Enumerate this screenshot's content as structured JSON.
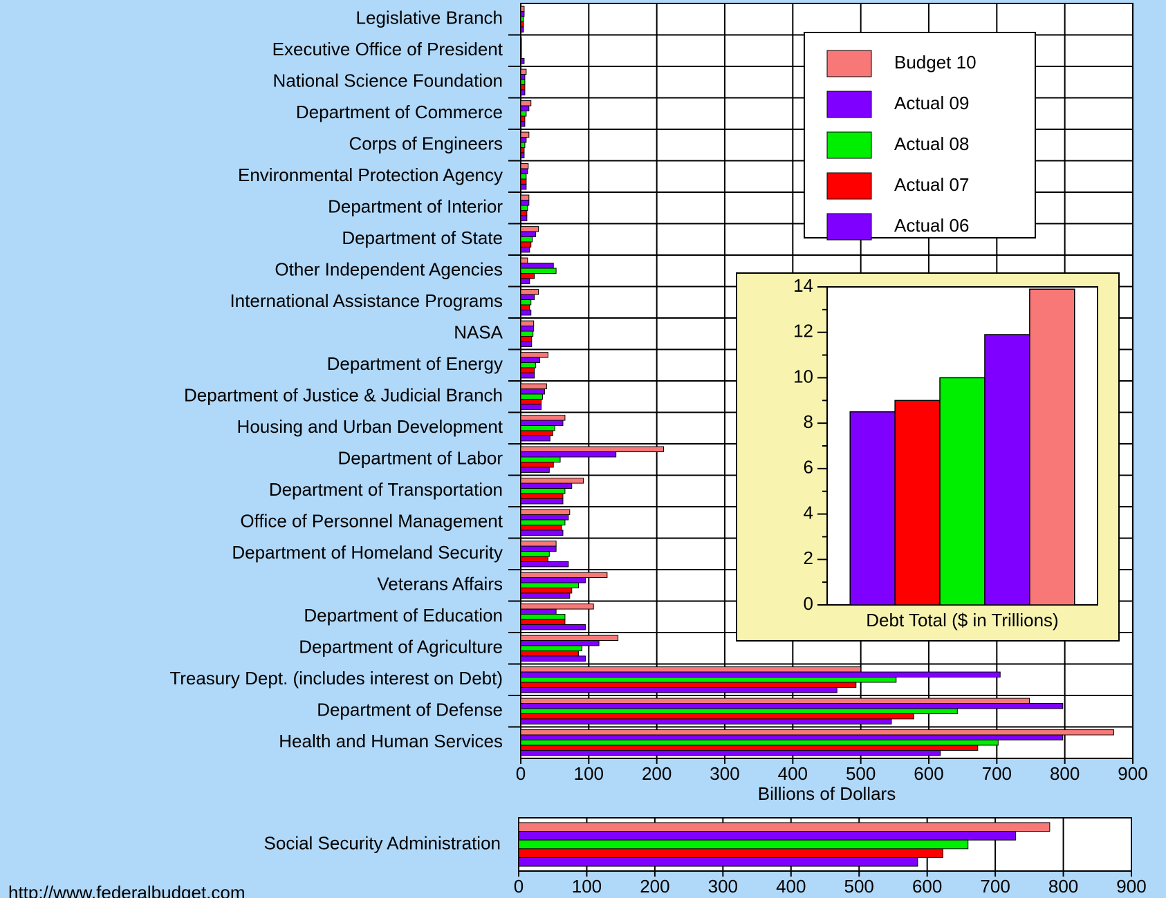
{
  "chart_data": [
    {
      "type": "barh",
      "categories": [
        "Legislative Branch",
        "Executive Office of President",
        "National Science Foundation",
        "Department of Commerce",
        "Corps of Engineers",
        "Environmental Protection Agency",
        "Department of Interior",
        "Department of State",
        "Other Independent Agencies",
        "International Assistance Programs",
        "NASA",
        "Department of Energy",
        "Department of Justice & Judicial Branch",
        "Housing and Urban Development",
        "Department of Labor",
        "Department of Transportation",
        "Office of Personnel Management",
        "Department of Homeland Security",
        "Veterans Affairs",
        "Department of Education",
        "Department of Agriculture",
        "Treasury Dept. (includes interest on Debt)",
        "Department of Defense",
        "Health and Human Services"
      ],
      "series": [
        {
          "name": "Budget 10",
          "color": "#f87878",
          "values": [
            5,
            1,
            8,
            15,
            12,
            11,
            12,
            26,
            10,
            26,
            19,
            40,
            38,
            65,
            210,
            92,
            72,
            52,
            127,
            107,
            143,
            500,
            748,
            872
          ]
        },
        {
          "name": "Actual 09",
          "color": "#8000ff",
          "values": [
            5,
            1,
            6,
            12,
            8,
            10,
            12,
            22,
            48,
            20,
            19,
            28,
            35,
            62,
            140,
            75,
            70,
            52,
            95,
            52,
            115,
            705,
            797,
            797
          ]
        },
        {
          "name": "Actual 08",
          "color": "#00ee00",
          "values": [
            4,
            1,
            6,
            8,
            6,
            8,
            10,
            17,
            52,
            15,
            18,
            22,
            32,
            50,
            58,
            65,
            65,
            42,
            85,
            65,
            90,
            552,
            642,
            702
          ]
        },
        {
          "name": "Actual 07",
          "color": "#ff0000",
          "values": [
            4,
            1,
            6,
            6,
            5,
            8,
            9,
            15,
            20,
            13,
            16,
            20,
            30,
            47,
            48,
            62,
            60,
            40,
            75,
            65,
            85,
            493,
            578,
            672
          ]
        },
        {
          "name": "Actual 06",
          "color": "#8000ff",
          "values": [
            4,
            5,
            6,
            6,
            5,
            8,
            9,
            13,
            13,
            15,
            16,
            20,
            30,
            43,
            42,
            62,
            62,
            70,
            72,
            95,
            95,
            465,
            545,
            617
          ]
        }
      ],
      "xlim": [
        0,
        900
      ],
      "xticks": [
        0,
        100,
        200,
        300,
        400,
        500,
        600,
        700,
        800,
        900
      ],
      "x_label": "Billions of Dollars",
      "grid": true,
      "legend": "top-right"
    },
    {
      "type": "barh",
      "categories": [
        "Social Security Administration"
      ],
      "series": [
        {
          "color": "#f87878",
          "values": [
            780
          ]
        },
        {
          "color": "#8000ff",
          "values": [
            730
          ]
        },
        {
          "color": "#00ee00",
          "values": [
            660
          ]
        },
        {
          "color": "#ff0000",
          "values": [
            623
          ]
        },
        {
          "color": "#8000ff",
          "values": [
            586
          ]
        }
      ],
      "xlim": [
        0,
        900
      ],
      "xticks": [
        0,
        100,
        200,
        300,
        400,
        500,
        600,
        700,
        800,
        900
      ],
      "grid": true
    },
    {
      "type": "bar",
      "categories": [
        "Debt Total ($ in Trillions)"
      ],
      "series": [
        {
          "color": "#8000ff",
          "values": [
            8.5
          ]
        },
        {
          "color": "#ff0000",
          "values": [
            9.0
          ]
        },
        {
          "color": "#00ee00",
          "values": [
            10.0
          ]
        },
        {
          "color": "#8000ff",
          "values": [
            11.9
          ]
        },
        {
          "color": "#f87878",
          "values": [
            13.9
          ]
        }
      ],
      "ylim": [
        0,
        14
      ],
      "yticks": [
        0,
        2,
        4,
        6,
        8,
        10,
        12,
        14
      ]
    }
  ],
  "footer": "http://www.federalbudget.com"
}
